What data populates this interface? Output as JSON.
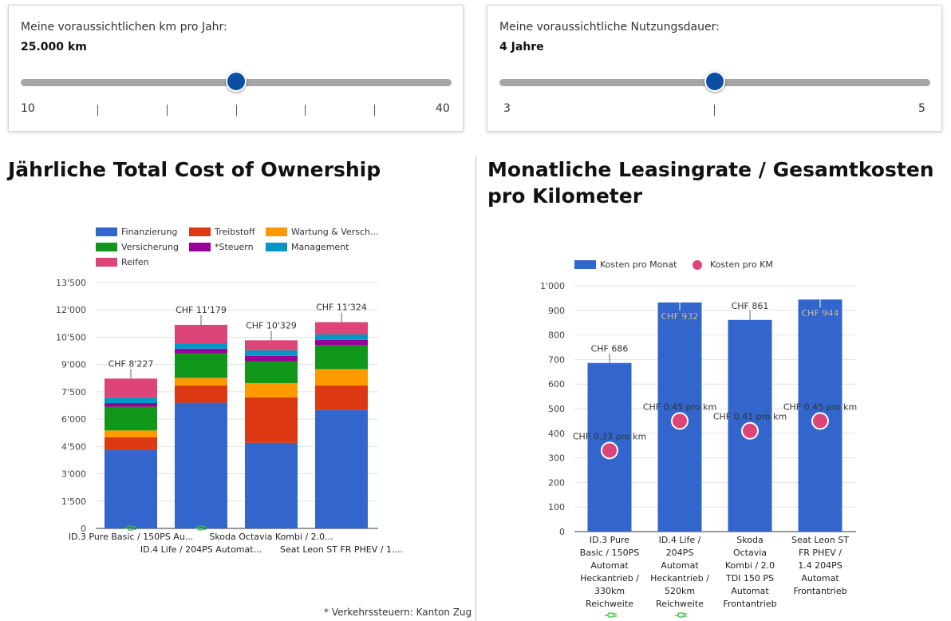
{
  "km_slider": {
    "label": "Meine voraussichtlichen km pro Jahr:",
    "value_text": "25.000 km",
    "min_label": "10",
    "max_label": "40",
    "fraction": 0.5
  },
  "duration_slider": {
    "label": "Meine voraussichtliche Nutzungsdauer:",
    "value_text": "4 Jahre",
    "min_label": "3",
    "max_label": "5",
    "fraction": 0.5
  },
  "tco": {
    "heading": "Jährliche Total Cost of Ownership",
    "footnote": "* Verkehrssteuern: Kanton Zug"
  },
  "leasing": {
    "heading_line1": "Monatliche Leasingrate / Gesamtkosten",
    "heading_line2": "pro Kilometer"
  },
  "colors": {
    "blue": "#3366cc",
    "red": "#dc3912",
    "orange": "#ff9900",
    "green": "#109618",
    "purple": "#990099",
    "teal": "#0099c6",
    "pink": "#dd4477",
    "thumb": "#0b4ea2",
    "plug_icon": "#2fbf3a"
  },
  "chart_data": [
    {
      "type": "bar",
      "stacked": true,
      "title": "Jährliche Total Cost of Ownership",
      "categories": [
        "ID.3 Pure Basic / 150PS Au...",
        "ID.4 Life / 204PS Automat...",
        "Skoda Octavia Kombi / 2.0...",
        "Seat Leon ST FR PHEV / 1...."
      ],
      "electric_icon": [
        true,
        true,
        false,
        false
      ],
      "series": [
        {
          "name": "Finanzierung",
          "color": "#3366cc",
          "values": [
            4300,
            6900,
            4700,
            6500
          ]
        },
        {
          "name": "Treibstoff",
          "color": "#dc3912",
          "values": [
            700,
            950,
            2500,
            1350
          ]
        },
        {
          "name": "Wartung & Versch...",
          "color": "#ff9900",
          "values": [
            380,
            420,
            780,
            900
          ]
        },
        {
          "name": "Versicherung",
          "color": "#109618",
          "values": [
            1300,
            1350,
            1200,
            1300
          ]
        },
        {
          "name": "*Steuern",
          "color": "#990099",
          "values": [
            200,
            250,
            300,
            300
          ]
        },
        {
          "name": "Management",
          "color": "#0099c6",
          "values": [
            300,
            300,
            300,
            300
          ]
        },
        {
          "name": "Reifen",
          "color": "#dd4477",
          "values": [
            1047,
            1009,
            549,
            674
          ]
        }
      ],
      "totals": [
        "CHF 8'227",
        "CHF 11'179",
        "CHF 10'329",
        "CHF 11'324"
      ],
      "total_values": [
        8227,
        11179,
        10329,
        11324
      ],
      "yticks": [
        "0",
        "1'500",
        "3'000",
        "4'500",
        "6'000",
        "7'500",
        "9'000",
        "10'500",
        "12'000",
        "13'500"
      ],
      "ylim": [
        0,
        13500
      ],
      "grid": true,
      "legend_position": "top"
    },
    {
      "type": "bar",
      "title": "Monatliche Leasingrate / Gesamtkosten pro Kilometer",
      "categories": [
        [
          "ID.3 Pure",
          "Basic / 150PS",
          "Automat",
          "Heckantrieb /",
          "330km",
          "Reichweite"
        ],
        [
          "ID.4 Life /",
          "204PS",
          "Automat",
          "Heckantrieb /",
          "520km",
          "Reichweite"
        ],
        [
          "Skoda",
          "Octavia",
          "Kombi / 2.0",
          "TDI 150 PS",
          "Automat",
          "Frontantrieb"
        ],
        [
          "Seat Leon ST",
          "FR PHEV /",
          "1.4 204PS",
          "Automat",
          "Frontantrieb"
        ]
      ],
      "electric_icon": [
        true,
        true,
        false,
        false
      ],
      "series": [
        {
          "name": "Kosten pro Monat",
          "color": "#3366cc",
          "values": [
            686,
            932,
            861,
            944
          ],
          "labels": [
            "CHF 686",
            "CHF 932",
            "CHF 861",
            "CHF 944"
          ]
        },
        {
          "name": "Kosten pro KM",
          "color": "#dd4477",
          "values": [
            0.33,
            0.45,
            0.41,
            0.45
          ],
          "plotted_on_left_axis_at": [
            330,
            450,
            410,
            450
          ],
          "labels": [
            "CHF 0.33 pro km",
            "CHF 0.45 pro km",
            "CHF 0.41 pro km",
            "CHF 0.45 pro km"
          ]
        }
      ],
      "yticks": [
        "0",
        "100",
        "200",
        "300",
        "400",
        "500",
        "600",
        "700",
        "800",
        "900",
        "1'000"
      ],
      "ylim": [
        0,
        1000
      ],
      "grid": true,
      "legend_position": "top"
    }
  ]
}
